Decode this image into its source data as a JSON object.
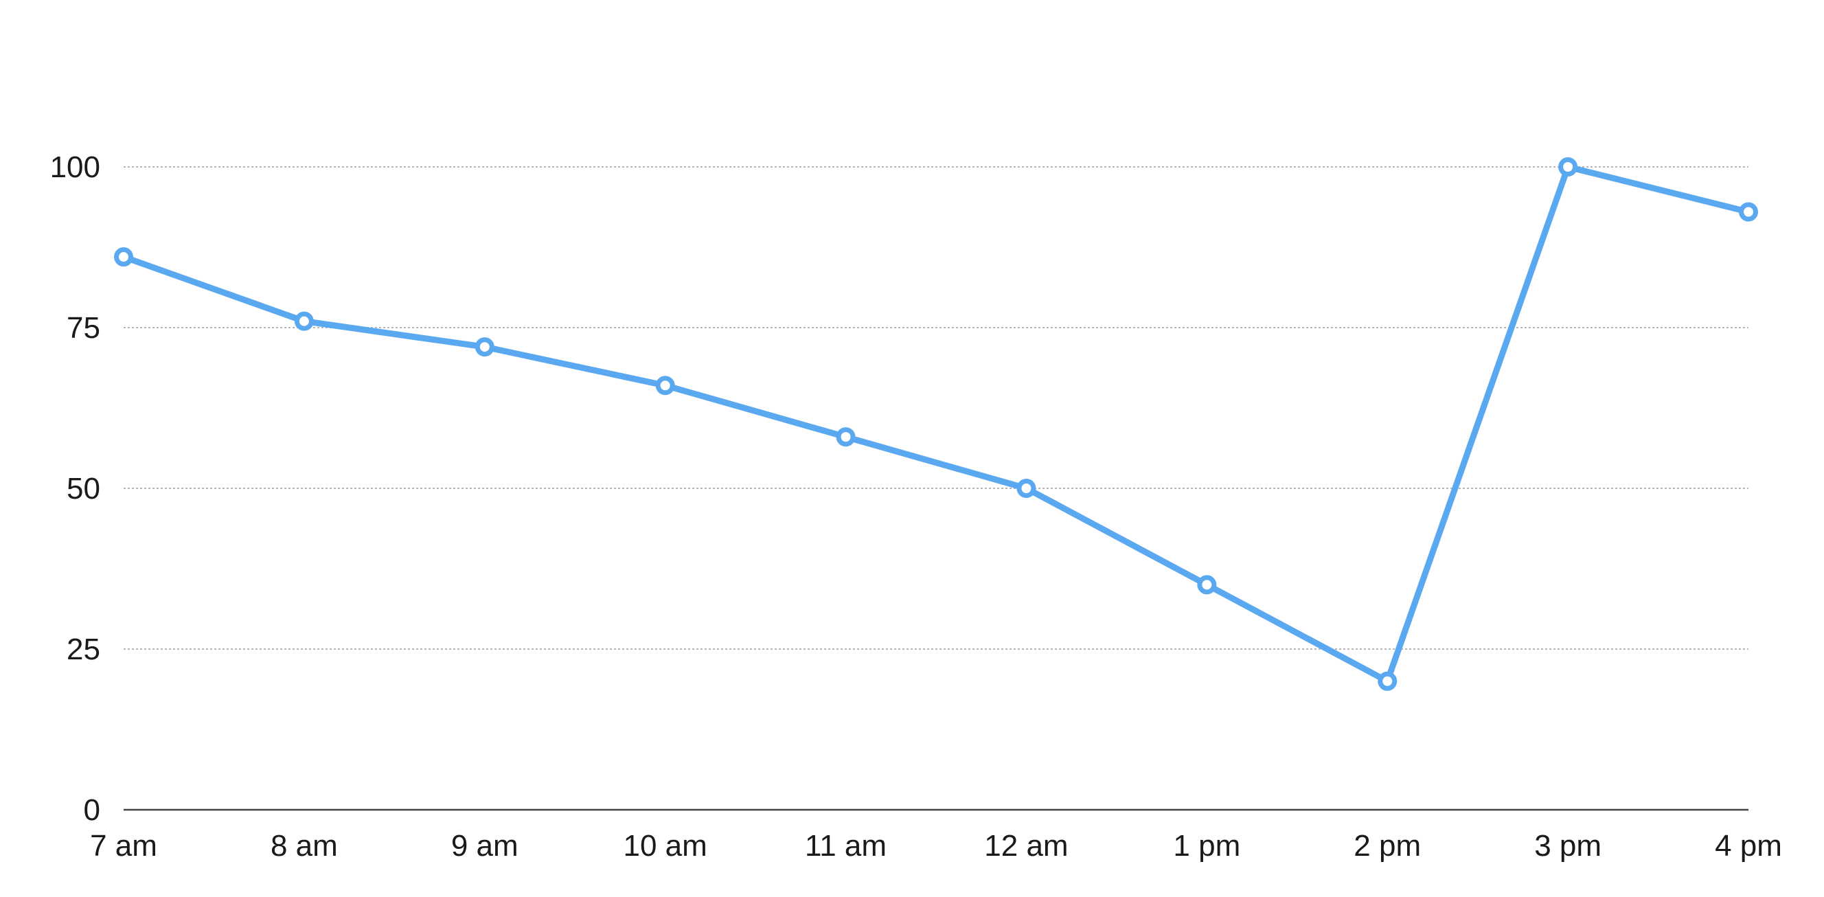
{
  "chart_data": {
    "type": "line",
    "title": "",
    "xlabel": "",
    "ylabel": "",
    "categories": [
      "7 am",
      "8 am",
      "9 am",
      "10 am",
      "11 am",
      "12 am",
      "1 pm",
      "2 pm",
      "3 pm",
      "4 pm"
    ],
    "series": [
      {
        "values": [
          86,
          76,
          72,
          66,
          58,
          50,
          35,
          20,
          100,
          93
        ]
      }
    ],
    "ylim": [
      0,
      100
    ],
    "yticks": [
      0,
      25,
      50,
      75,
      100
    ],
    "grid": true,
    "legend": "none",
    "colors": {
      "line": "#5aa8f0",
      "grid": "#b5b5b5",
      "axis": "#444444",
      "text": "#1a1a1a"
    }
  }
}
